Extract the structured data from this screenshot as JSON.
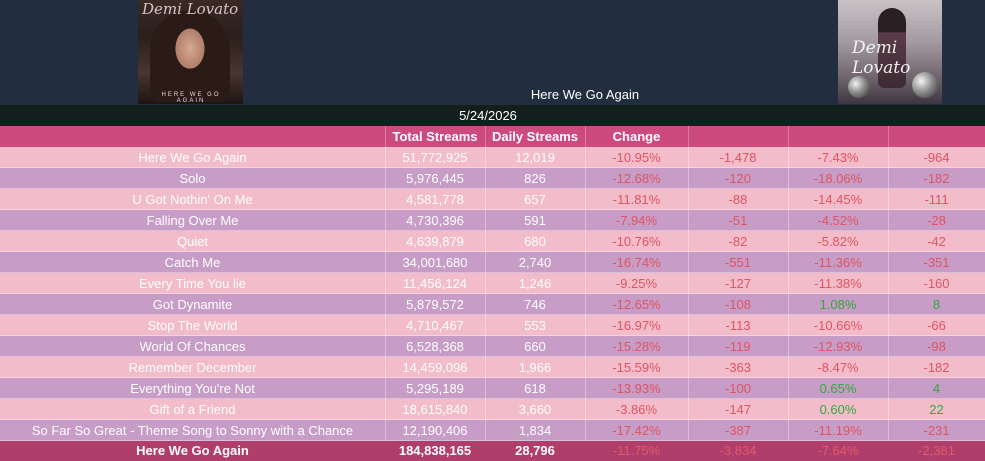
{
  "header": {
    "album_title": "Here We Go Again",
    "cover_left_signature": "Demi Lovato",
    "cover_left_strip": "HERE WE GO AGAIN",
    "cover_right_signature": "Demi Lovato"
  },
  "date": "5/24/2026",
  "columns": {
    "total": "Total Streams",
    "daily": "Daily Streams",
    "change": "Change"
  },
  "rows": [
    {
      "name": "Here We Go Again",
      "total": "51,772,925",
      "daily": "12,019",
      "chg": "-10.95%",
      "abs": "-1,478",
      "wk": "-7.43%",
      "wabs": "-964"
    },
    {
      "name": "Solo",
      "total": "5,976,445",
      "daily": "826",
      "chg": "-12.68%",
      "abs": "-120",
      "wk": "-18.06%",
      "wabs": "-182"
    },
    {
      "name": "U Got Nothin' On Me",
      "total": "4,581,778",
      "daily": "657",
      "chg": "-11.81%",
      "abs": "-88",
      "wk": "-14.45%",
      "wabs": "-111"
    },
    {
      "name": "Falling Over Me",
      "total": "4,730,396",
      "daily": "591",
      "chg": "-7.94%",
      "abs": "-51",
      "wk": "-4.52%",
      "wabs": "-28"
    },
    {
      "name": "Quiet",
      "total": "4,639,879",
      "daily": "680",
      "chg": "-10.76%",
      "abs": "-82",
      "wk": "-5.82%",
      "wabs": "-42"
    },
    {
      "name": "Catch Me",
      "total": "34,001,680",
      "daily": "2,740",
      "chg": "-16.74%",
      "abs": "-551",
      "wk": "-11.36%",
      "wabs": "-351"
    },
    {
      "name": "Every Time You lie",
      "total": "11,456,124",
      "daily": "1,246",
      "chg": "-9.25%",
      "abs": "-127",
      "wk": "-11.38%",
      "wabs": "-160"
    },
    {
      "name": "Got Dynamite",
      "total": "5,879,572",
      "daily": "746",
      "chg": "-12.65%",
      "abs": "-108",
      "wk": "1.08%",
      "wabs": "8"
    },
    {
      "name": "Stop The World",
      "total": "4,710,467",
      "daily": "553",
      "chg": "-16.97%",
      "abs": "-113",
      "wk": "-10.66%",
      "wabs": "-66"
    },
    {
      "name": "World Of Chances",
      "total": "6,528,368",
      "daily": "660",
      "chg": "-15.28%",
      "abs": "-119",
      "wk": "-12.93%",
      "wabs": "-98"
    },
    {
      "name": "Remember December",
      "total": "14,459,096",
      "daily": "1,966",
      "chg": "-15.59%",
      "abs": "-363",
      "wk": "-8.47%",
      "wabs": "-182"
    },
    {
      "name": "Everything You're Not",
      "total": "5,295,189",
      "daily": "618",
      "chg": "-13.93%",
      "abs": "-100",
      "wk": "0.65%",
      "wabs": "4"
    },
    {
      "name": "Gift of a Friend",
      "total": "18,615,840",
      "daily": "3,660",
      "chg": "-3.86%",
      "abs": "-147",
      "wk": "0.60%",
      "wabs": "22"
    },
    {
      "name": "So Far So Great - Theme Song to Sonny with a Chance",
      "total": "12,190,406",
      "daily": "1,834",
      "chg": "-17.42%",
      "abs": "-387",
      "wk": "-11.19%",
      "wabs": "-231"
    }
  ],
  "totals": {
    "name": "Here We Go Again",
    "total": "184,838,165",
    "daily": "28,796",
    "chg": "-11.75%",
    "abs": "-3,834",
    "wk": "-7.64%",
    "wabs": "-2,381"
  },
  "colors": {
    "negative": "#e0555f",
    "positive": "#35a83a",
    "header_pink": "#cc4a7e",
    "row_light": "#f2bccb",
    "row_purple": "#c79cc6"
  }
}
